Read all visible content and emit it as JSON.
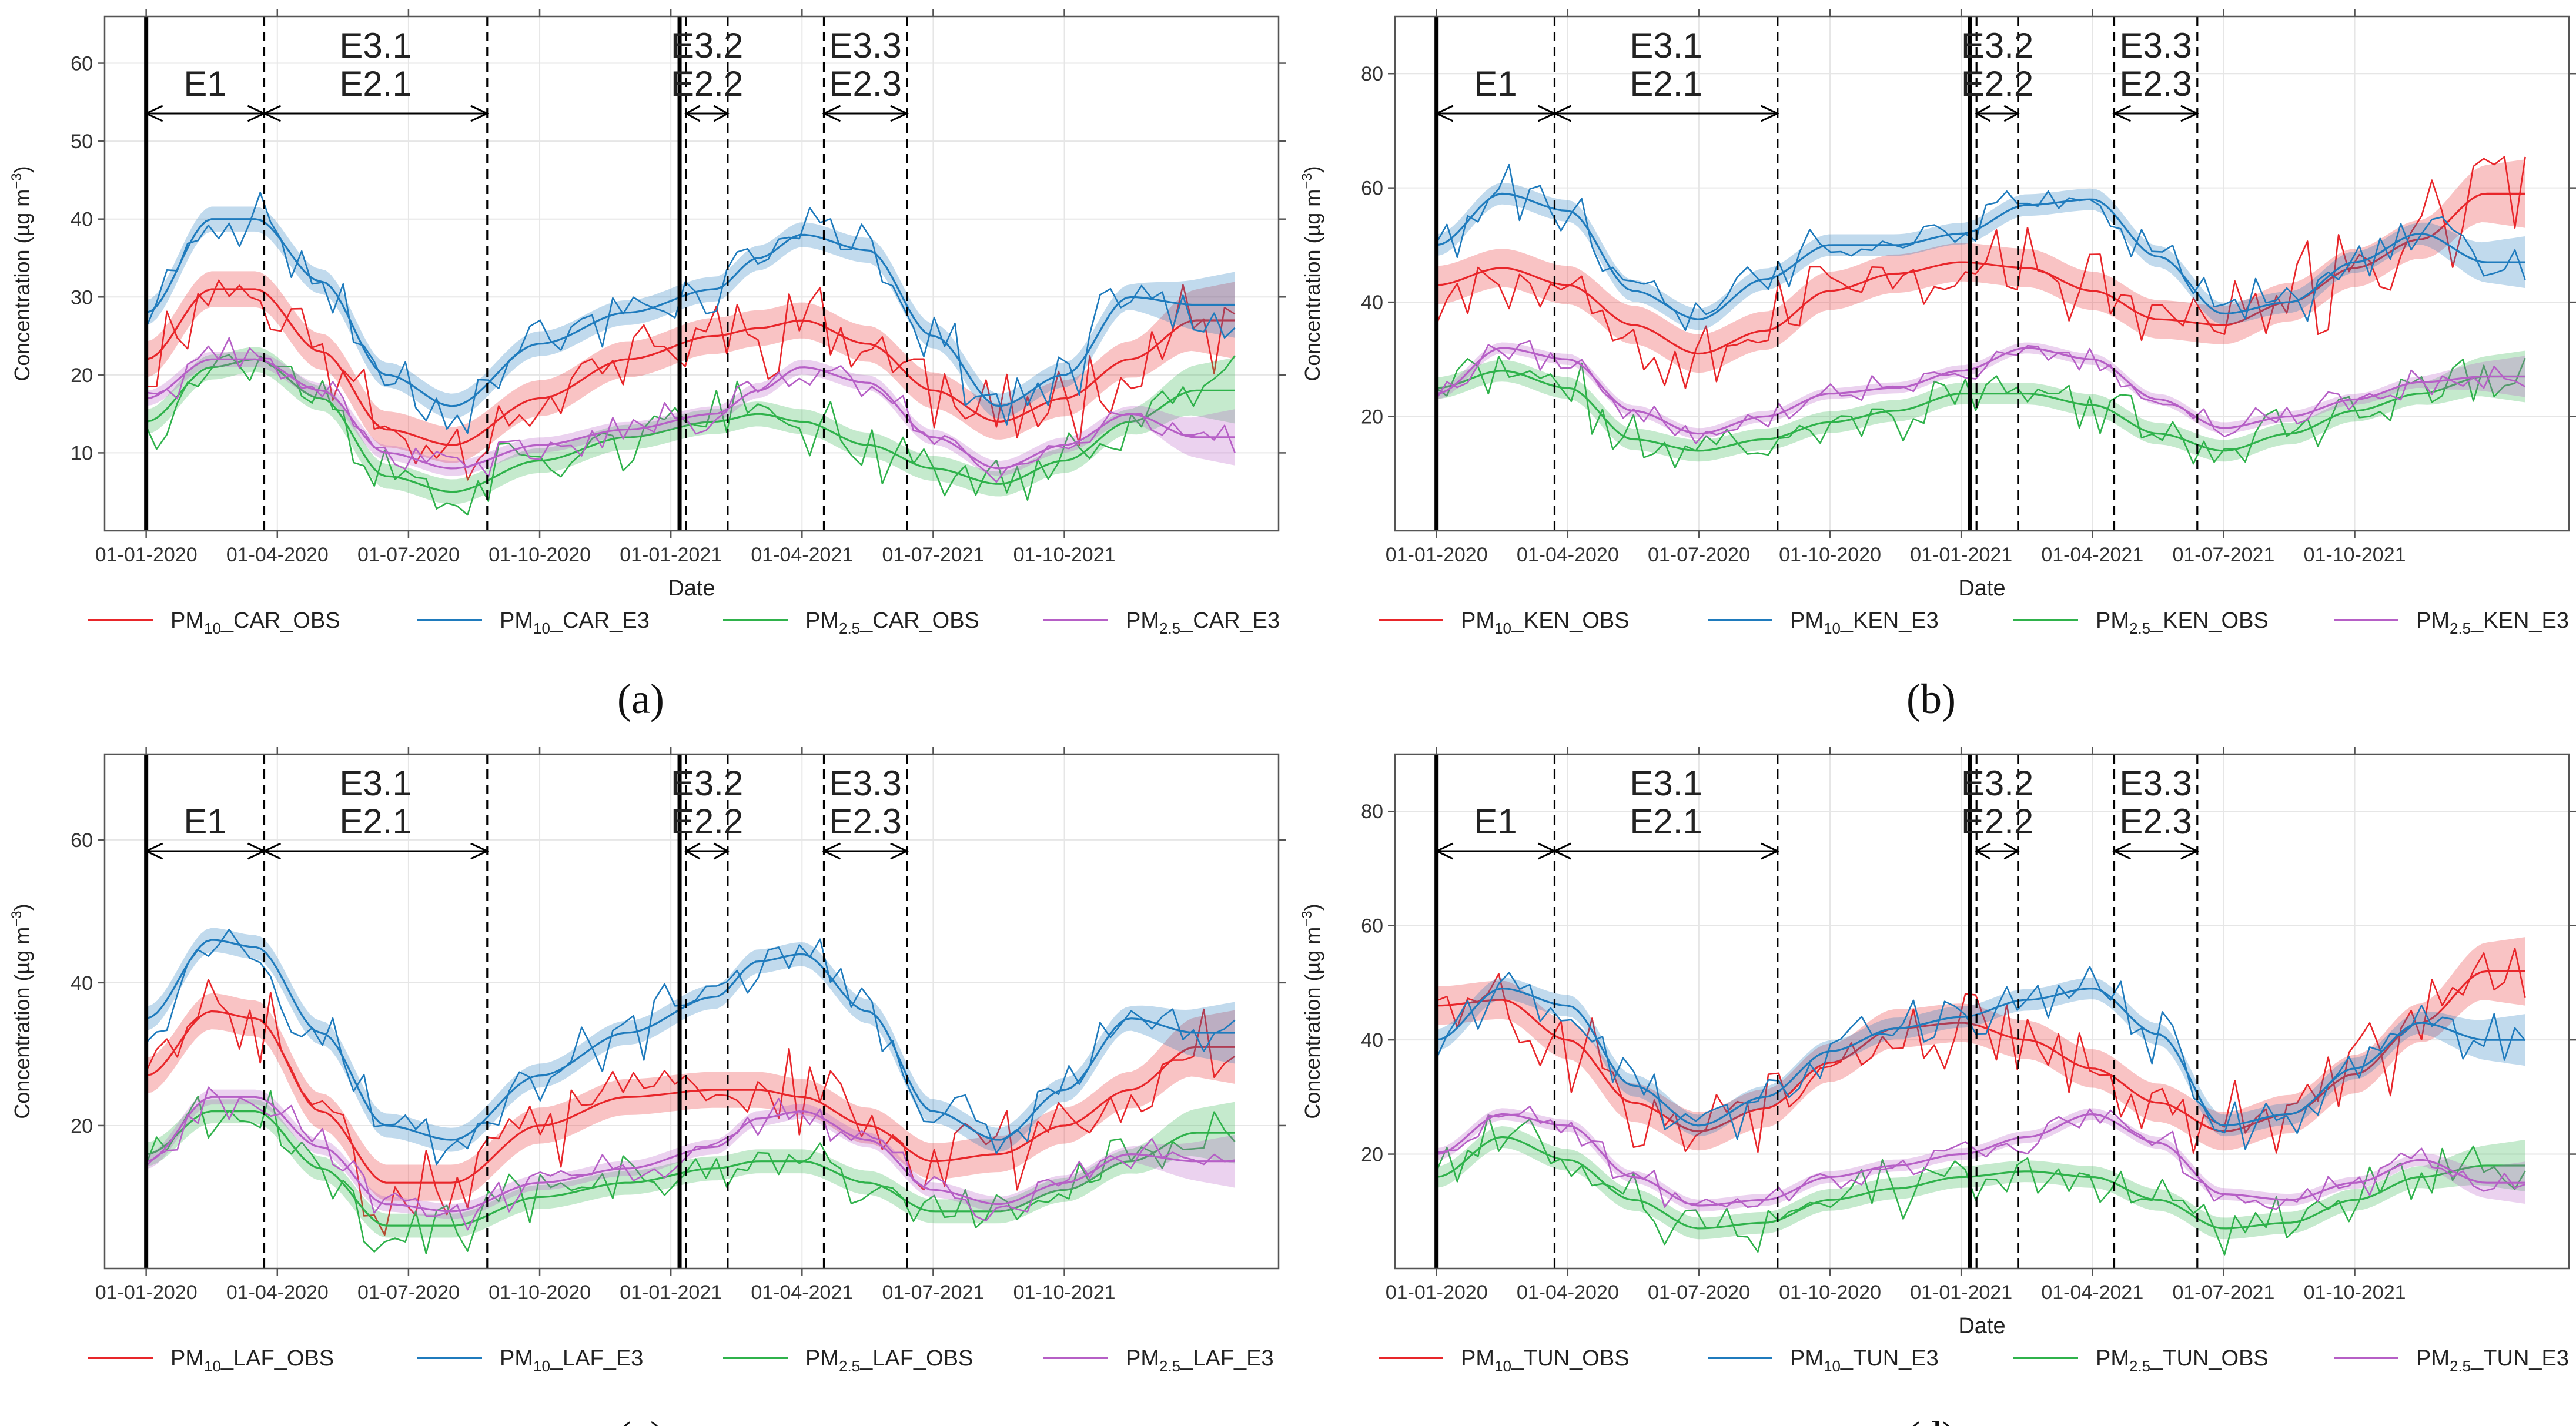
{
  "figure": {
    "x_axis_title": "Date",
    "y_axis_title_main": "Concentration (",
    "y_axis_title_mu": "µ",
    "y_axis_title_unit": "g m",
    "y_axis_title_exp": "−3",
    "y_axis_title_close": ")",
    "date_ticks": [
      "01-01-2020",
      "01-04-2020",
      "01-07-2020",
      "01-10-2020",
      "01-01-2021",
      "01-04-2021",
      "01-07-2021",
      "01-10-2021"
    ],
    "period_labels": [
      "E1",
      "E3.1",
      "E2.1",
      "E3.2",
      "E2.2",
      "E3.3",
      "E2.3"
    ],
    "colors": {
      "obs10": "#e8262a",
      "e310": "#1f7bbd",
      "obs25": "#2fb24b",
      "e325": "#b65fc6"
    }
  },
  "chart_data": [
    {
      "type": "line",
      "panel_label": "(a)",
      "station": "CAR",
      "ylim": [
        0,
        66
      ],
      "yticks": [
        "10",
        "20",
        "30",
        "40",
        "50",
        "60"
      ],
      "xlabel": "Date",
      "legend": [
        {
          "pre": "PM",
          "sub": "10",
          "post": "_CAR_OBS",
          "color": "#e8262a"
        },
        {
          "pre": "PM",
          "sub": "10",
          "post": "_CAR_E3",
          "color": "#1f7bbd"
        },
        {
          "pre": "PM",
          "sub": "2.5",
          "post": "_CAR_OBS",
          "color": "#2fb24b"
        },
        {
          "pre": "PM",
          "sub": "2.5",
          "post": "_CAR_E3",
          "color": "#b65fc6"
        }
      ],
      "trend_months": [
        0,
        1.5,
        2.5,
        4,
        5.5,
        7,
        9,
        11,
        13,
        14,
        15,
        16.5,
        18,
        19.5,
        21,
        22.5,
        24
      ],
      "series": [
        {
          "name": "PM10_CAR_OBS",
          "color": "#e8262a",
          "trend": [
            22,
            31,
            31,
            23,
            13,
            11,
            17,
            22,
            25,
            26,
            27,
            24,
            18,
            14,
            17,
            22,
            27
          ],
          "noise": 5.5,
          "seed": 11
        },
        {
          "name": "PM10_CAR_E3",
          "color": "#1f7bbd",
          "trend": [
            28,
            40,
            40,
            32,
            20,
            16,
            24,
            28,
            31,
            35,
            38,
            36,
            25,
            16,
            20,
            30,
            29
          ],
          "noise": 3.8,
          "seed": 23
        },
        {
          "name": "PM2.5_CAR_OBS",
          "color": "#2fb24b",
          "trend": [
            14,
            21,
            22,
            17,
            7,
            5,
            9,
            12,
            14,
            15,
            14,
            11,
            8,
            6,
            9,
            14,
            18
          ],
          "noise": 3.8,
          "seed": 37
        },
        {
          "name": "PM2.5_CAR_E3",
          "color": "#b65fc6",
          "trend": [
            17,
            22,
            22,
            18,
            10,
            8,
            11,
            13,
            15,
            18,
            21,
            19,
            12,
            8,
            11,
            15,
            12
          ],
          "noise": 2.3,
          "seed": 41
        }
      ],
      "periods": {
        "lines": [
          {
            "m": 0,
            "solid": true
          },
          {
            "m": 2.7
          },
          {
            "m": 7.8
          },
          {
            "m": 12.2,
            "solid": true
          },
          {
            "m": 12.35
          },
          {
            "m": 13.3
          },
          {
            "m": 15.5
          },
          {
            "m": 17.4
          }
        ],
        "arrows": [
          {
            "a": 0,
            "b": 2.7,
            "text": [
              "E1"
            ]
          },
          {
            "a": 2.7,
            "b": 7.8,
            "text": [
              "E3.1",
              "E2.1"
            ]
          },
          {
            "a": 12.35,
            "b": 13.3,
            "text": [
              "E3.2",
              "E2.2"
            ]
          },
          {
            "a": 15.5,
            "b": 17.4,
            "text": [
              "E3.3",
              "E2.3"
            ]
          }
        ]
      }
    },
    {
      "type": "line",
      "panel_label": "(b)",
      "station": "KEN",
      "ylim": [
        0,
        90
      ],
      "yticks": [
        "20",
        "40",
        "60",
        "80"
      ],
      "xlabel": "Date",
      "legend": [
        {
          "pre": "PM",
          "sub": "10",
          "post": "_KEN_OBS",
          "color": "#e8262a"
        },
        {
          "pre": "PM",
          "sub": "10",
          "post": "_KEN_E3",
          "color": "#1f7bbd"
        },
        {
          "pre": "PM",
          "sub": "2.5",
          "post": "_KEN_OBS",
          "color": "#2fb24b"
        },
        {
          "pre": "PM",
          "sub": "2.5",
          "post": "_KEN_E3",
          "color": "#b65fc6"
        }
      ],
      "trend_months": [
        0,
        1.5,
        3,
        4.5,
        6,
        7.5,
        9,
        10.5,
        12,
        13.5,
        15,
        16.5,
        18,
        19.5,
        21,
        22.5,
        24
      ],
      "series": [
        {
          "name": "PM10_KEN_OBS",
          "color": "#e8262a",
          "trend": [
            43,
            46,
            43,
            36,
            31,
            35,
            42,
            45,
            47,
            46,
            42,
            37,
            36,
            40,
            46,
            51,
            59
          ],
          "noise": 8,
          "seed": 53
        },
        {
          "name": "PM10_KEN_E3",
          "color": "#1f7bbd",
          "trend": [
            50,
            59,
            56,
            42,
            37,
            44,
            50,
            50,
            52,
            57,
            58,
            48,
            38,
            40,
            47,
            52,
            47
          ],
          "noise": 4.5,
          "seed": 61
        },
        {
          "name": "PM2.5_KEN_OBS",
          "color": "#2fb24b",
          "trend": [
            25,
            28,
            25,
            16,
            14,
            16,
            19,
            21,
            24,
            24,
            22,
            17,
            14,
            17,
            21,
            24,
            27
          ],
          "noise": 4.5,
          "seed": 71
        },
        {
          "name": "PM2.5_KEN_E3",
          "color": "#b65fc6",
          "trend": [
            24,
            32,
            30,
            21,
            17,
            20,
            24,
            25,
            28,
            32,
            30,
            23,
            18,
            20,
            23,
            26,
            27
          ],
          "noise": 2.3,
          "seed": 79
        }
      ],
      "periods": {
        "lines": [
          {
            "m": 0,
            "solid": true
          },
          {
            "m": 2.7
          },
          {
            "m": 7.8
          },
          {
            "m": 12.2,
            "solid": true
          },
          {
            "m": 12.35
          },
          {
            "m": 13.3
          },
          {
            "m": 15.5
          },
          {
            "m": 17.4
          }
        ],
        "arrows": [
          {
            "a": 0,
            "b": 2.7,
            "text": [
              "E1"
            ]
          },
          {
            "a": 2.7,
            "b": 7.8,
            "text": [
              "E3.1",
              "E2.1"
            ]
          },
          {
            "a": 12.35,
            "b": 13.3,
            "text": [
              "E3.2",
              "E2.2"
            ]
          },
          {
            "a": 15.5,
            "b": 17.4,
            "text": [
              "E3.3",
              "E2.3"
            ]
          }
        ]
      }
    },
    {
      "type": "line",
      "panel_label": "(c)",
      "station": "LAF",
      "ylim": [
        0,
        72
      ],
      "yticks": [
        "20",
        "40",
        "60"
      ],
      "xlabel": "",
      "legend": [
        {
          "pre": "PM",
          "sub": "10",
          "post": "_LAF_OBS",
          "color": "#e8262a"
        },
        {
          "pre": "PM",
          "sub": "10",
          "post": "_LAF_E3",
          "color": "#1f7bbd"
        },
        {
          "pre": "PM",
          "sub": "2.5",
          "post": "_LAF_OBS",
          "color": "#2fb24b"
        },
        {
          "pre": "PM",
          "sub": "2.5",
          "post": "_LAF_E3",
          "color": "#b65fc6"
        }
      ],
      "trend_months": [
        0,
        1.5,
        2.5,
        4,
        5.5,
        7,
        9,
        11,
        13,
        14,
        15,
        16.5,
        18,
        19.5,
        21,
        22.5,
        24
      ],
      "series": [
        {
          "name": "PM10_LAF_OBS",
          "color": "#e8262a",
          "trend": [
            27,
            36,
            35,
            22,
            12,
            12,
            20,
            24,
            25,
            25,
            24,
            20,
            15,
            16,
            20,
            25,
            31
          ],
          "noise": 6,
          "seed": 83
        },
        {
          "name": "PM10_LAF_E3",
          "color": "#1f7bbd",
          "trend": [
            35,
            46,
            45,
            33,
            20,
            18,
            27,
            33,
            38,
            43,
            44,
            36,
            22,
            18,
            25,
            35,
            33
          ],
          "noise": 4,
          "seed": 97
        },
        {
          "name": "PM2.5_LAF_OBS",
          "color": "#2fb24b",
          "trend": [
            16,
            22,
            22,
            14,
            6,
            6,
            10,
            12,
            14,
            15,
            15,
            12,
            8,
            8,
            11,
            15,
            19
          ],
          "noise": 4,
          "seed": 101
        },
        {
          "name": "PM2.5_LAF_E3",
          "color": "#b65fc6",
          "trend": [
            15,
            24,
            24,
            17,
            9,
            8,
            12,
            14,
            17,
            21,
            22,
            18,
            11,
            9,
            12,
            16,
            15
          ],
          "noise": 2.5,
          "seed": 113
        }
      ],
      "periods": {
        "lines": [
          {
            "m": 0,
            "solid": true
          },
          {
            "m": 2.7
          },
          {
            "m": 7.8
          },
          {
            "m": 12.2,
            "solid": true
          },
          {
            "m": 12.35
          },
          {
            "m": 13.3
          },
          {
            "m": 15.5
          },
          {
            "m": 17.4
          }
        ],
        "arrows": [
          {
            "a": 0,
            "b": 2.7,
            "text": [
              "E1"
            ]
          },
          {
            "a": 2.7,
            "b": 7.8,
            "text": [
              "E3.1",
              "E2.1"
            ]
          },
          {
            "a": 12.35,
            "b": 13.3,
            "text": [
              "E3.2",
              "E2.2"
            ]
          },
          {
            "a": 15.5,
            "b": 17.4,
            "text": [
              "E3.3",
              "E2.3"
            ]
          }
        ]
      }
    },
    {
      "type": "line",
      "panel_label": "(d)",
      "station": "TUN",
      "ylim": [
        0,
        90
      ],
      "yticks": [
        "20",
        "40",
        "60",
        "80"
      ],
      "xlabel": "Date",
      "legend": [
        {
          "pre": "PM",
          "sub": "10",
          "post": "_TUN_OBS",
          "color": "#e8262a"
        },
        {
          "pre": "PM",
          "sub": "10",
          "post": "_TUN_E3",
          "color": "#1f7bbd"
        },
        {
          "pre": "PM",
          "sub": "2.5",
          "post": "_TUN_OBS",
          "color": "#2fb24b"
        },
        {
          "pre": "PM",
          "sub": "2.5",
          "post": "_TUN_E3",
          "color": "#b65fc6"
        }
      ],
      "trend_months": [
        0,
        1.5,
        3,
        4.5,
        6,
        7.5,
        9,
        10.5,
        12,
        13.5,
        15,
        16.5,
        18,
        19.5,
        21,
        22.5,
        24
      ],
      "series": [
        {
          "name": "PM10_TUN_OBS",
          "color": "#e8262a",
          "trend": [
            46,
            47,
            40,
            29,
            24,
            28,
            36,
            42,
            43,
            40,
            35,
            29,
            24,
            27,
            34,
            43,
            52
          ],
          "noise": 8,
          "seed": 127
        },
        {
          "name": "PM10_TUN_E3",
          "color": "#1f7bbd",
          "trend": [
            40,
            49,
            46,
            32,
            25,
            30,
            38,
            42,
            44,
            47,
            49,
            41,
            25,
            27,
            35,
            43,
            40
          ],
          "noise": 4.5,
          "seed": 131
        },
        {
          "name": "PM2.5_TUN_OBS",
          "color": "#2fb24b",
          "trend": [
            16,
            23,
            19,
            12,
            7,
            8,
            12,
            14,
            16,
            17,
            16,
            12,
            7,
            8,
            12,
            16,
            18
          ],
          "noise": 4.5,
          "seed": 139
        },
        {
          "name": "PM2.5_TUN_E3",
          "color": "#b65fc6",
          "trend": [
            20,
            27,
            25,
            16,
            11,
            12,
            16,
            18,
            20,
            23,
            27,
            22,
            13,
            12,
            15,
            19,
            15
          ],
          "noise": 2.5,
          "seed": 149
        }
      ],
      "periods": {
        "lines": [
          {
            "m": 0,
            "solid": true
          },
          {
            "m": 2.7
          },
          {
            "m": 7.8
          },
          {
            "m": 12.2,
            "solid": true
          },
          {
            "m": 12.35
          },
          {
            "m": 13.3
          },
          {
            "m": 15.5
          },
          {
            "m": 17.4
          }
        ],
        "arrows": [
          {
            "a": 0,
            "b": 2.7,
            "text": [
              "E1"
            ]
          },
          {
            "a": 2.7,
            "b": 7.8,
            "text": [
              "E3.1",
              "E2.1"
            ]
          },
          {
            "a": 12.35,
            "b": 13.3,
            "text": [
              "E3.2",
              "E2.2"
            ]
          },
          {
            "a": 15.5,
            "b": 17.4,
            "text": [
              "E3.3",
              "E2.3"
            ]
          }
        ]
      }
    }
  ]
}
